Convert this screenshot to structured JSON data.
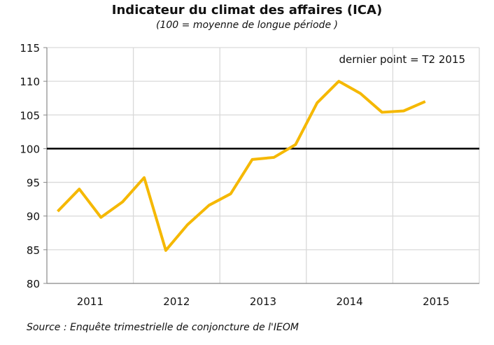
{
  "chart_data": {
    "type": "line",
    "title": "Indicateur du climat des affaires (ICA)",
    "subtitle": "(100 = moyenne de longue période )",
    "annotation": "dernier point = T2 2015",
    "source": "Source : Enquête trimestrielle de conjoncture de l'IEOM",
    "years": [
      "2011",
      "2012",
      "2013",
      "2014",
      "2015"
    ],
    "x": [
      "T1 2011",
      "T2 2011",
      "T3 2011",
      "T4 2011",
      "T1 2012",
      "T2 2012",
      "T3 2012",
      "T4 2012",
      "T1 2013",
      "T2 2013",
      "T3 2013",
      "T4 2013",
      "T1 2014",
      "T2 2014",
      "T3 2014",
      "T4 2014",
      "T1 2015",
      "T2 2015"
    ],
    "values": [
      90.7,
      94.0,
      89.8,
      92.1,
      95.7,
      84.9,
      88.7,
      91.6,
      93.3,
      98.4,
      98.7,
      100.6,
      106.8,
      110.0,
      108.2,
      105.4,
      105.6,
      107.0
    ],
    "reference_line": 100,
    "ylim": [
      80,
      115
    ],
    "yticks": [
      80,
      85,
      90,
      95,
      100,
      105,
      110,
      115
    ],
    "grid": true,
    "line_color": "#F5B800",
    "reference_color": "#000000",
    "grid_color": "#D9D9D9"
  }
}
